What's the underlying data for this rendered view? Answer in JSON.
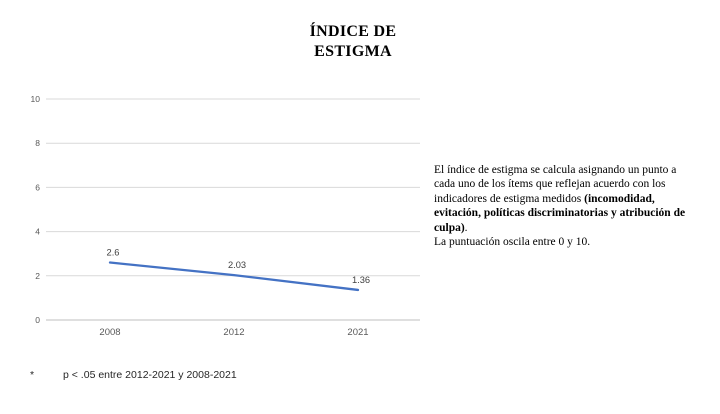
{
  "slide": {
    "background_color": "#ffffff"
  },
  "header": {
    "title": "ÍNDICE DE ESTIGMA",
    "title_lines": [
      "ÍNDICE DE",
      "ESTIGMA"
    ]
  },
  "chart_data": {
    "type": "line",
    "title": "",
    "categories": [
      "2008",
      "2012",
      "2021"
    ],
    "series": [
      {
        "name": "Índice de estigma",
        "values": [
          2.6,
          2.03,
          1.36
        ]
      }
    ],
    "data_labels": [
      "2.6",
      "2.03",
      "1.36"
    ],
    "yticks": [
      0,
      2,
      4,
      6,
      8,
      10
    ],
    "ylim": [
      0,
      10
    ],
    "xlabel": "",
    "ylabel": "",
    "grid": true,
    "legend_position": "none",
    "line_color": "#4472C4",
    "gridline_color": "#D9D9D9",
    "axis_line_color": "#BFBFBF",
    "axis_label_color": "#595959",
    "data_label_color": "#404040"
  },
  "description": {
    "part1": "El índice de estigma se calcula asignando un punto a cada uno de los ítems que reflejan acuerdo con los indicadores de estigma medidos ",
    "bold": "(incomodidad, evitación, políticas discriminatorias y atribución de culpa)",
    "part2": ".",
    "line2": "La puntuación oscila entre 0 y 10."
  },
  "footnote": {
    "marker": "*",
    "text": "p < .05 entre 2012-2021 y 2008-2021"
  }
}
